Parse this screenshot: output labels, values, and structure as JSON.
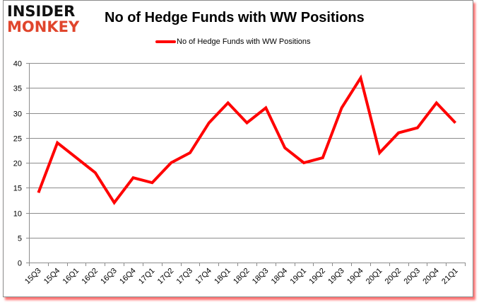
{
  "logo": {
    "line1": "INSIDER",
    "line2": "MONKEY",
    "line1_color": "#111111",
    "line2_color": "#e0452c"
  },
  "chart_data": {
    "type": "line",
    "title": "No of Hedge Funds with WW Positions",
    "xlabel": "",
    "ylabel": "",
    "categories": [
      "15Q3",
      "15Q4",
      "16Q1",
      "16Q2",
      "16Q3",
      "16Q4",
      "17Q1",
      "17Q2",
      "17Q3",
      "17Q4",
      "18Q1",
      "18Q2",
      "18Q3",
      "18Q4",
      "19Q1",
      "19Q2",
      "19Q3",
      "19Q4",
      "20Q1",
      "20Q2",
      "20Q3",
      "20Q4",
      "21Q1"
    ],
    "series": [
      {
        "name": "No of Hedge Funds with WW Positions",
        "color": "#ff0000",
        "values": [
          14,
          24,
          21,
          18,
          12,
          17,
          16,
          20,
          22,
          28,
          32,
          28,
          31,
          23,
          20,
          21,
          31,
          37,
          22,
          26,
          27,
          32,
          28
        ]
      }
    ],
    "ylim": [
      0,
      40
    ],
    "yticks": [
      0,
      5,
      10,
      15,
      20,
      25,
      30,
      35,
      40
    ],
    "grid": true,
    "legend_position": "top"
  }
}
